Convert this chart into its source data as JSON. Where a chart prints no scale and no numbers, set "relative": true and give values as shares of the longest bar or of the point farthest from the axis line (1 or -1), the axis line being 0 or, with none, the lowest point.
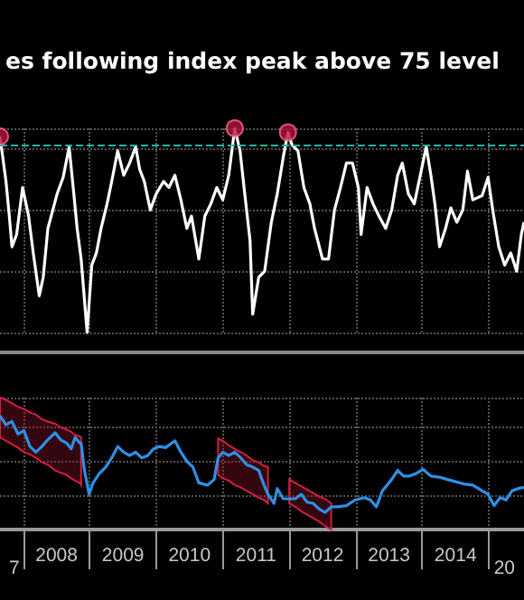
{
  "chart_data": [
    {
      "type": "line",
      "title": "es following index peak above 75 level",
      "relative": true,
      "grid": true,
      "tick_labels": false,
      "marker": "none",
      "xlim": [
        2007.65,
        2015.53
      ],
      "xticks": [
        {
          "value": 2008,
          "label": null
        },
        {
          "value": 2009,
          "label": null
        },
        {
          "value": 2010,
          "label": null
        },
        {
          "value": 2011,
          "label": null
        },
        {
          "value": 2012,
          "label": null
        },
        {
          "value": 2013,
          "label": null
        },
        {
          "value": 2014,
          "label": null
        },
        {
          "value": 2015,
          "label": null
        }
      ],
      "ref_lines": [
        {
          "axis": "y",
          "value": 0.918,
          "color": "#1fb5a8",
          "line_style": "dashed"
        }
      ],
      "series": [
        {
          "color": "#ffffff",
          "x": [
            2007.65,
            2007.74,
            2007.79,
            2007.83,
            2007.9,
            2007.99,
            2008.08,
            2008.15,
            2008.24,
            2008.3,
            2008.37,
            2008.51,
            2008.6,
            2008.69,
            2008.76,
            2008.81,
            2008.87,
            2008.96,
            2009.03,
            2009.1,
            2009.17,
            2009.26,
            2009.33,
            2009.42,
            2009.51,
            2009.6,
            2009.69,
            2009.75,
            2009.82,
            2009.91,
            2010.0,
            2010.11,
            2010.19,
            2010.28,
            2010.37,
            2010.46,
            2010.53,
            2010.64,
            2010.73,
            2010.82,
            2010.91,
            2011.0,
            2011.09,
            2011.18,
            2011.26,
            2011.32,
            2011.41,
            2011.45,
            2011.54,
            2011.63,
            2011.73,
            2011.82,
            2011.91,
            2011.98,
            2012.04,
            2012.13,
            2012.22,
            2012.31,
            2012.38,
            2012.5,
            2012.59,
            2012.68,
            2012.77,
            2012.86,
            2012.95,
            2013.04,
            2013.08,
            2013.17,
            2013.26,
            2013.35,
            2013.45,
            2013.54,
            2013.63,
            2013.7,
            2013.79,
            2013.88,
            2013.97,
            2014.06,
            2014.13,
            2014.19,
            2014.26,
            2014.35,
            2014.43,
            2014.52,
            2014.61,
            2014.68,
            2014.76,
            2014.9,
            2014.99,
            2015.06,
            2015.15,
            2015.24,
            2015.33,
            2015.42,
            2015.49,
            2015.53
          ],
          "values": [
            0.96,
            0.74,
            0.57,
            0.42,
            0.48,
            0.71,
            0.57,
            0.39,
            0.18,
            0.27,
            0.51,
            0.68,
            0.76,
            0.91,
            0.68,
            0.51,
            0.36,
            0,
            0.33,
            0.39,
            0.51,
            0.63,
            0.74,
            0.89,
            0.77,
            0.83,
            0.91,
            0.8,
            0.74,
            0.6,
            0.68,
            0.74,
            0.71,
            0.77,
            0.65,
            0.51,
            0.57,
            0.36,
            0.57,
            0.63,
            0.71,
            0.65,
            0.77,
            1.0,
            0.89,
            0.71,
            0.45,
            0.09,
            0.27,
            0.3,
            0.54,
            0.68,
            0.86,
            0.98,
            0.92,
            0.89,
            0.71,
            0.63,
            0.51,
            0.36,
            0.36,
            0.6,
            0.71,
            0.83,
            0.83,
            0.71,
            0.48,
            0.71,
            0.63,
            0.57,
            0.51,
            0.6,
            0.77,
            0.83,
            0.68,
            0.63,
            0.77,
            0.91,
            0.77,
            0.63,
            0.42,
            0.51,
            0.61,
            0.54,
            0.6,
            0.79,
            0.65,
            0.67,
            0.76,
            0.6,
            0.42,
            0.33,
            0.39,
            0.3,
            0.48,
            0.54
          ]
        },
        {
          "type": "scatter",
          "marker": "circle",
          "color": "#b3133f",
          "x": [
            2007.65,
            2011.18,
            2011.98
          ],
          "values": [
            0.96,
            1.0,
            0.98
          ]
        }
      ]
    },
    {
      "type": "line",
      "relative": true,
      "grid": true,
      "tick_labels": "x",
      "marker": "none",
      "xlim": [
        2007.65,
        2015.53
      ],
      "annotations": [
        "7",
        "20"
      ],
      "xticks": [
        {
          "value": 2008,
          "label": null
        },
        {
          "value": 2008.5,
          "label": "2008"
        },
        {
          "value": 2009,
          "label": null
        },
        {
          "value": 2009.5,
          "label": "2009"
        },
        {
          "value": 2010,
          "label": null
        },
        {
          "value": 2010.5,
          "label": "2010"
        },
        {
          "value": 2011,
          "label": null
        },
        {
          "value": 2011.5,
          "label": "2011"
        },
        {
          "value": 2012,
          "label": null
        },
        {
          "value": 2012.5,
          "label": "2012"
        },
        {
          "value": 2013,
          "label": null
        },
        {
          "value": 2013.5,
          "label": "2013"
        },
        {
          "value": 2014,
          "label": null
        },
        {
          "value": 2014.5,
          "label": "2014"
        },
        {
          "value": 2015,
          "label": null
        }
      ],
      "series": [
        {
          "color": "#2f8fe6",
          "x": [
            2007.65,
            2007.74,
            2007.83,
            2007.92,
            2008.01,
            2008.1,
            2008.19,
            2008.28,
            2008.37,
            2008.48,
            2008.56,
            2008.65,
            2008.72,
            2008.78,
            2008.85,
            2008.87,
            2008.92,
            2008.99,
            2009.05,
            2009.14,
            2009.24,
            2009.33,
            2009.42,
            2009.51,
            2009.6,
            2009.69,
            2009.78,
            2009.87,
            2009.96,
            2010.05,
            2010.14,
            2010.28,
            2010.37,
            2010.46,
            2010.55,
            2010.64,
            2010.77,
            2010.87,
            2010.93,
            2011.0,
            2011.09,
            2011.18,
            2011.27,
            2011.36,
            2011.45,
            2011.54,
            2011.62,
            2011.68,
            2011.77,
            2011.82,
            2011.91,
            2012.0,
            2012.09,
            2012.18,
            2012.27,
            2012.36,
            2012.45,
            2012.54,
            2012.63,
            2012.72,
            2012.86,
            2012.99,
            2013.13,
            2013.22,
            2013.31,
            2013.4,
            2013.54,
            2013.63,
            2013.72,
            2013.81,
            2013.9,
            2014.01,
            2014.13,
            2014.26,
            2014.44,
            2014.63,
            2014.76,
            2014.9,
            2014.99,
            2015.08,
            2015.17,
            2015.26,
            2015.35,
            2015.44,
            2015.53
          ],
          "values": [
            1.0,
            0.92,
            0.95,
            0.84,
            0.87,
            0.73,
            0.68,
            0.73,
            0.79,
            0.85,
            0.79,
            0.76,
            0.71,
            0.81,
            0.76,
            0.76,
            0.52,
            0.31,
            0.41,
            0.49,
            0.55,
            0.63,
            0.73,
            0.68,
            0.65,
            0.68,
            0.63,
            0.65,
            0.71,
            0.73,
            0.72,
            0.78,
            0.68,
            0.6,
            0.55,
            0.41,
            0.39,
            0.44,
            0.63,
            0.68,
            0.65,
            0.68,
            0.63,
            0.57,
            0.55,
            0.52,
            0.39,
            0.31,
            0.23,
            0.36,
            0.27,
            0.27,
            0.27,
            0.31,
            0.24,
            0.23,
            0.18,
            0.15,
            0.2,
            0.2,
            0.21,
            0.26,
            0.28,
            0.26,
            0.2,
            0.34,
            0.44,
            0.52,
            0.47,
            0.47,
            0.49,
            0.53,
            0.47,
            0.46,
            0.43,
            0.4,
            0.39,
            0.34,
            0.31,
            0.21,
            0.28,
            0.26,
            0.34,
            0.36,
            0.37
          ],
          "upper": [
            1.16,
            1.14,
            1.11,
            1.08,
            1.06,
            1.03,
            1.01,
            0.97,
            0.95,
            0.93,
            0.9,
            0.88,
            0.86,
            0.83,
            0.82,
            0.81,
            null,
            null,
            null,
            null,
            null,
            null,
            null,
            null,
            null,
            null,
            null,
            null,
            null,
            null,
            null,
            null,
            null,
            null,
            null,
            null,
            null,
            null,
            0.8,
            0.78,
            0.74,
            0.71,
            0.68,
            0.65,
            0.61,
            0.59,
            0.56,
            0.55,
            null,
            null,
            null,
            0.44,
            0.41,
            0.38,
            0.35,
            0.32,
            0.29,
            0.27,
            0.23,
            null,
            null,
            null,
            null,
            null,
            null,
            null,
            null,
            null,
            null,
            null,
            null,
            null,
            null,
            null,
            null,
            null,
            null,
            null,
            null,
            null,
            null,
            null,
            null,
            null,
            null
          ],
          "lower": [
            0.81,
            0.78,
            0.75,
            0.72,
            0.68,
            0.66,
            0.63,
            0.59,
            0.57,
            0.52,
            0.5,
            0.48,
            0.45,
            0.43,
            0.41,
            0.39,
            null,
            null,
            null,
            null,
            null,
            null,
            null,
            null,
            null,
            null,
            null,
            null,
            null,
            null,
            null,
            null,
            null,
            null,
            null,
            null,
            null,
            null,
            0.48,
            0.45,
            0.43,
            0.39,
            0.37,
            0.34,
            0.31,
            0.28,
            0.26,
            0.23,
            null,
            null,
            null,
            0.23,
            0.2,
            0.16,
            0.13,
            0.1,
            0.07,
            0.03,
            0.0,
            null,
            null,
            null,
            null,
            null,
            null,
            null,
            null,
            null,
            null,
            null,
            null,
            null,
            null,
            null,
            null,
            null,
            null,
            null,
            null,
            null,
            null,
            null,
            null,
            null,
            null
          ]
        }
      ]
    }
  ]
}
